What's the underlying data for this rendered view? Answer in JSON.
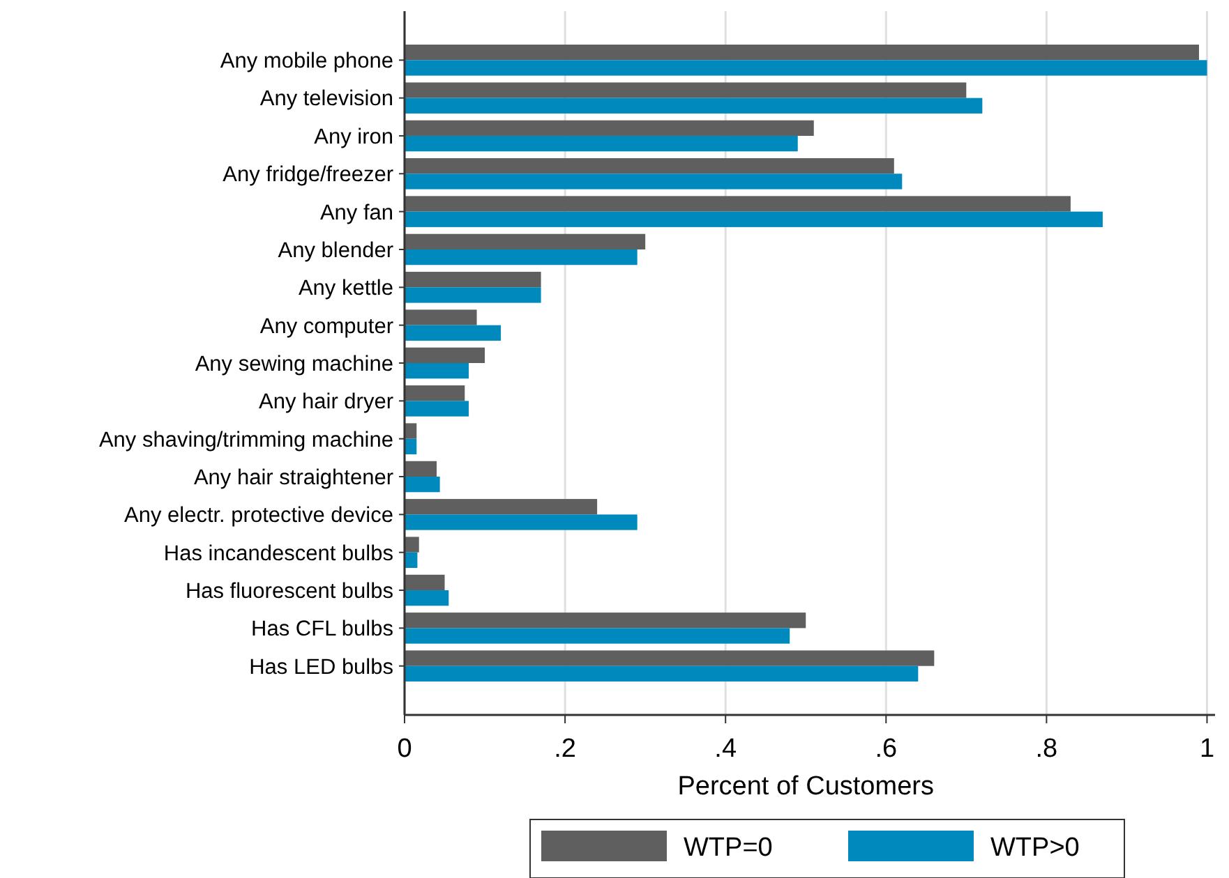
{
  "chart_data": {
    "type": "bar",
    "orientation": "horizontal",
    "xlabel": "Percent of Customers",
    "categories": [
      "Any mobile phone",
      "Any television",
      "Any iron",
      "Any fridge/freezer",
      "Any fan",
      "Any blender",
      "Any kettle",
      "Any computer",
      "Any sewing machine",
      "Any hair dryer",
      "Any shaving/trimming machine",
      "Any hair straightener",
      "Any electr. protective device",
      "Has incandescent bulbs",
      "Has fluorescent bulbs",
      "Has CFL bulbs",
      "Has LED bulbs"
    ],
    "series": [
      {
        "name": "WTP=0",
        "color": "#5f5f5f",
        "values": [
          0.99,
          0.7,
          0.51,
          0.61,
          0.83,
          0.3,
          0.17,
          0.09,
          0.1,
          0.075,
          0.015,
          0.04,
          0.24,
          0.018,
          0.05,
          0.5,
          0.66
        ]
      },
      {
        "name": "WTP>0",
        "color": "#0089bc",
        "values": [
          1.0,
          0.72,
          0.49,
          0.62,
          0.87,
          0.29,
          0.17,
          0.12,
          0.08,
          0.08,
          0.015,
          0.044,
          0.29,
          0.016,
          0.055,
          0.48,
          0.64
        ]
      }
    ],
    "xlim": [
      0,
      1.01
    ],
    "xticks": [
      0,
      {
        "value": 0.2,
        "label": ".2"
      },
      {
        "value": 0.4,
        "label": ".4"
      },
      {
        "value": 0.6,
        "label": ".6"
      },
      {
        "value": 0.8,
        "label": ".8"
      },
      1
    ],
    "grid": "x",
    "legend": "bottom"
  }
}
